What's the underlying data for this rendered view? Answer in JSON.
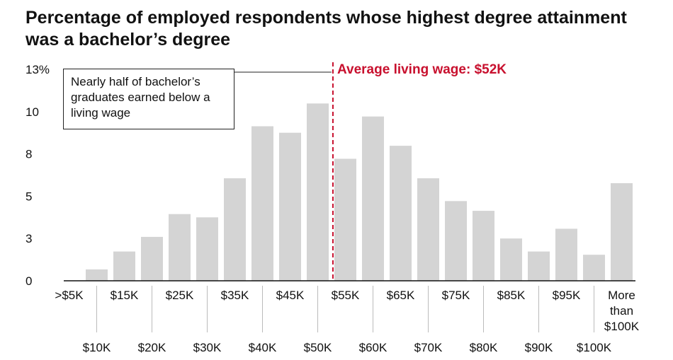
{
  "title": "Percentage of employed respondents whose highest degree attainment was a bachelor’s degree",
  "chart_data": {
    "type": "bar",
    "categories": [
      ">$5K",
      "$10K",
      "$15K",
      "$20K",
      "$25K",
      "$30K",
      "$35K",
      "$40K",
      "$45K",
      "$50K",
      "$55K",
      "$60K",
      "$65K",
      "$70K",
      "$75K",
      "$80K",
      "$85K",
      "$90K",
      "$95K",
      "$100K",
      "More than $100K"
    ],
    "values": [
      0,
      0.7,
      1.8,
      2.7,
      4.1,
      3.9,
      6.3,
      9.5,
      9.1,
      10.9,
      7.5,
      10.1,
      8.3,
      6.3,
      4.9,
      4.3,
      2.6,
      1.8,
      3.2,
      1.6,
      6.0
    ],
    "y_tick_labels": [
      "0",
      "3",
      "5",
      "8",
      "10",
      "13%"
    ],
    "y_tick_values": [
      0,
      2.6,
      5.2,
      7.8,
      10.4,
      13
    ],
    "ylim": [
      0,
      13
    ],
    "x_upper_labels": [
      {
        "index": 0,
        "lines": [
          ">$5K"
        ]
      },
      {
        "index": 2,
        "lines": [
          "$15K"
        ]
      },
      {
        "index": 4,
        "lines": [
          "$25K"
        ]
      },
      {
        "index": 6,
        "lines": [
          "$35K"
        ]
      },
      {
        "index": 8,
        "lines": [
          "$45K"
        ]
      },
      {
        "index": 10,
        "lines": [
          "$55K"
        ]
      },
      {
        "index": 12,
        "lines": [
          "$65K"
        ]
      },
      {
        "index": 14,
        "lines": [
          "$75K"
        ]
      },
      {
        "index": 16,
        "lines": [
          "$85K"
        ]
      },
      {
        "index": 18,
        "lines": [
          "$95K"
        ]
      },
      {
        "index": 20,
        "lines": [
          "More",
          "than",
          "$100K"
        ]
      }
    ],
    "x_lower_labels": [
      {
        "index": 1,
        "text": "$10K"
      },
      {
        "index": 3,
        "text": "$20K"
      },
      {
        "index": 5,
        "text": "$30K"
      },
      {
        "index": 7,
        "text": "$40K"
      },
      {
        "index": 9,
        "text": "$50K"
      },
      {
        "index": 11,
        "text": "$60K"
      },
      {
        "index": 13,
        "text": "$70K"
      },
      {
        "index": 15,
        "text": "$80K"
      },
      {
        "index": 17,
        "text": "$90K"
      },
      {
        "index": 19,
        "text": "$100K"
      }
    ],
    "reference_line": {
      "value": 52,
      "label": "Average living wage: $52K"
    },
    "annotation": "Nearly half of bachelor’s graduates earned below a living wage",
    "grid": false,
    "bar_color": "#d4d4d4",
    "reference_color": "#c8102e"
  }
}
